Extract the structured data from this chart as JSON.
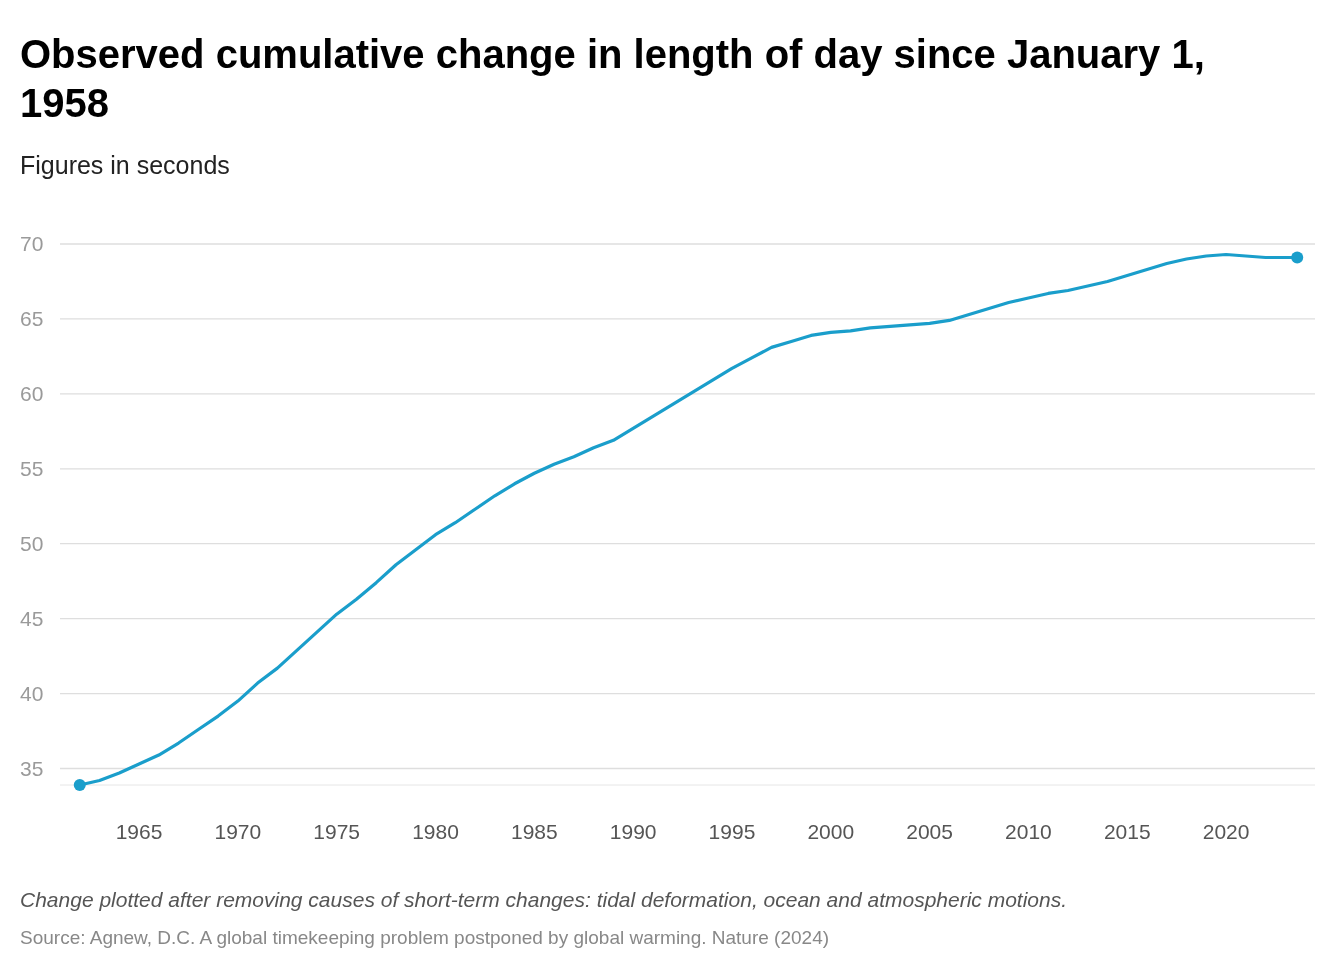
{
  "chart_data": {
    "type": "line",
    "title": "Observed cumulative change in length of day since January 1, 1958",
    "subtitle": "Figures in seconds",
    "annotations": [
      "Change plotted after removing causes of short-term changes: tidal deformation, ocean and atmospheric motions.",
      "Source: Agnew, D.C. A global timekeeping problem postponed by global warming. Nature (2024)"
    ],
    "series": [
      {
        "color": "#1a9ecb",
        "x": [
          1962,
          1963,
          1964,
          1965,
          1966,
          1967,
          1968,
          1969,
          1970,
          1971,
          1972,
          1973,
          1974,
          1975,
          1976,
          1977,
          1978,
          1979,
          1980,
          1981,
          1982,
          1983,
          1984,
          1985,
          1986,
          1987,
          1988,
          1989,
          1990,
          1991,
          1992,
          1993,
          1994,
          1995,
          1996,
          1997,
          1998,
          1999,
          2000,
          2001,
          2002,
          2003,
          2004,
          2005,
          2006,
          2007,
          2008,
          2009,
          2010,
          2011,
          2012,
          2013,
          2014,
          2015,
          2016,
          2017,
          2018,
          2019,
          2020,
          2021,
          2022,
          2023,
          2023.6
        ],
        "values": [
          33.9,
          34.2,
          34.7,
          35.3,
          35.9,
          36.7,
          37.6,
          38.5,
          39.5,
          40.7,
          41.7,
          42.9,
          44.1,
          45.3,
          46.3,
          47.4,
          48.6,
          49.6,
          50.6,
          51.4,
          52.3,
          53.2,
          54.0,
          54.7,
          55.3,
          55.8,
          56.4,
          56.9,
          57.7,
          58.5,
          59.3,
          60.1,
          60.9,
          61.7,
          62.4,
          63.1,
          63.5,
          63.9,
          64.1,
          64.2,
          64.4,
          64.5,
          64.6,
          64.7,
          64.9,
          65.3,
          65.7,
          66.1,
          66.4,
          66.7,
          66.9,
          67.2,
          67.5,
          67.9,
          68.3,
          68.7,
          69.0,
          69.2,
          69.3,
          69.2,
          69.1,
          69.1,
          69.1
        ]
      },
      {
        "type": "scatter",
        "color": "#1a9ecb",
        "x": [
          1962,
          2023.6
        ],
        "values": [
          33.9,
          69.1
        ]
      }
    ],
    "xlim": [
      1961,
      2024.5
    ],
    "xticks": [
      1965,
      1970,
      1975,
      1980,
      1985,
      1990,
      1995,
      2000,
      2005,
      2010,
      2015,
      2020
    ],
    "ylim": [
      33.9,
      70
    ],
    "yticks": [
      35,
      40,
      45,
      50,
      55,
      60,
      65,
      70
    ],
    "grid": "y",
    "line_style": "solid"
  }
}
